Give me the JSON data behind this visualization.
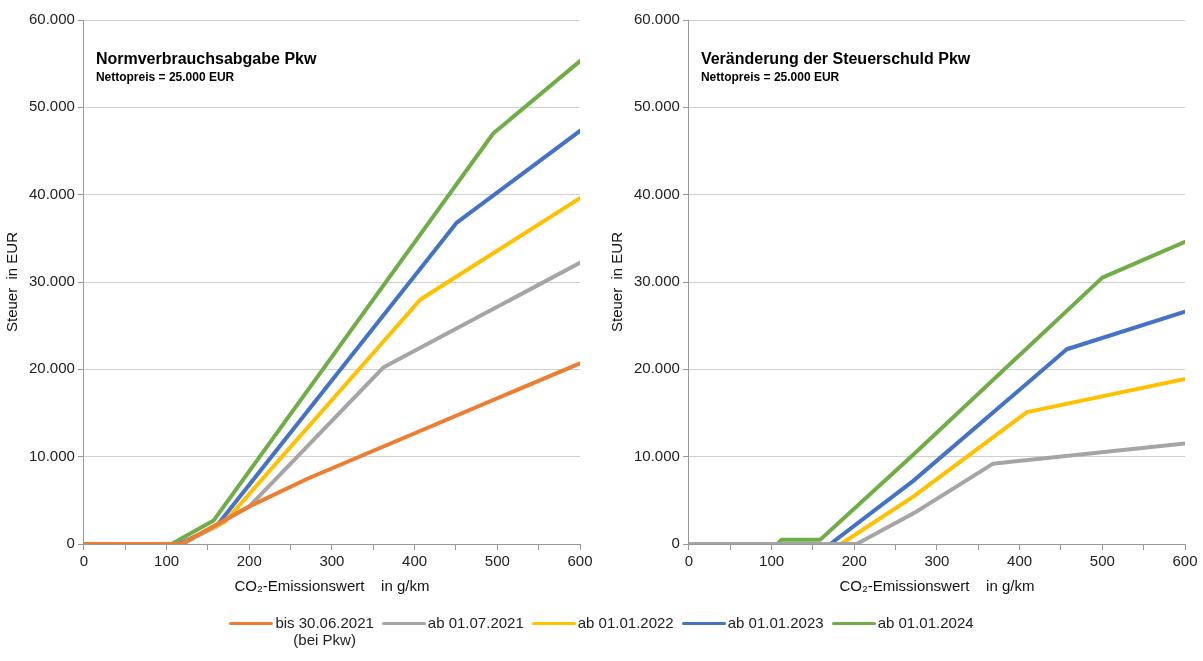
{
  "chart_data": [
    {
      "type": "line",
      "title": "Normverbrauchsabgabe Pkw",
      "subtitle": "Nettopreis = 25.000 EUR",
      "xlabel": "CO₂-Emissionswert    in g/km",
      "ylabel": "Steuer  in EUR",
      "xlim": [
        0,
        600
      ],
      "xticks": [
        0,
        {
          "value": 50,
          "label": null
        },
        100,
        {
          "value": 150,
          "label": null
        },
        200,
        {
          "value": 250,
          "label": null
        },
        300,
        {
          "value": 350,
          "label": null
        },
        400,
        {
          "value": 450,
          "label": null
        },
        500,
        {
          "value": 550,
          "label": null
        },
        600
      ],
      "ylim": [
        0,
        60000
      ],
      "yticks": [
        {
          "value": 0,
          "label": "0"
        },
        {
          "value": 10000,
          "label": "10.000"
        },
        {
          "value": 20000,
          "label": "20.000"
        },
        {
          "value": 30000,
          "label": "30.000"
        },
        {
          "value": 40000,
          "label": "40.000"
        },
        {
          "value": 50000,
          "label": "50.000"
        },
        {
          "value": 60000,
          "label": "60.000"
        }
      ],
      "grid": "y",
      "legend": "bottom",
      "marker": "none",
      "line_style": "solid",
      "series": [
        {
          "name": "bis 30.06.2021\n(bei Pkw)",
          "color": "#ed7d31",
          "x": [
            0,
            118,
            200,
            271,
            600
          ],
          "values": [
            0,
            0,
            4300,
            7500,
            20700
          ]
        },
        {
          "name": "ab 01.07.2021",
          "color": "#a5a5a5",
          "x": [
            0,
            120,
            200,
            362,
            600
          ],
          "values": [
            0,
            0,
            4300,
            20200,
            32200
          ]
        },
        {
          "name": "ab 01.01.2022",
          "color": "#ffc000",
          "x": [
            0,
            118,
            170,
            407,
            600
          ],
          "values": [
            0,
            0,
            2500,
            28000,
            39600
          ]
        },
        {
          "name": "ab 01.01.2023",
          "color": "#4472c4",
          "x": [
            0,
            115,
            160,
            451,
            600
          ],
          "values": [
            0,
            0,
            2000,
            36800,
            47300
          ]
        },
        {
          "name": "ab 01.01.2024",
          "color": "#70ad47",
          "x": [
            0,
            106,
            157,
            495,
            600
          ],
          "values": [
            0,
            0,
            2700,
            47000,
            55300
          ]
        }
      ]
    },
    {
      "type": "line",
      "title": "Veränderung der Steuerschuld Pkw",
      "subtitle": "Nettopreis = 25.000 EUR",
      "xlabel": "CO₂-Emissionswert    in g/km",
      "ylabel": "Steuer  in EUR",
      "xlim": [
        0,
        600
      ],
      "xticks": [
        0,
        {
          "value": 50,
          "label": null
        },
        100,
        {
          "value": 150,
          "label": null
        },
        200,
        {
          "value": 250,
          "label": null
        },
        300,
        {
          "value": 350,
          "label": null
        },
        400,
        {
          "value": 450,
          "label": null
        },
        500,
        {
          "value": 550,
          "label": null
        },
        600
      ],
      "ylim": [
        0,
        60000
      ],
      "yticks": [
        {
          "value": 0,
          "label": "0"
        },
        {
          "value": 10000,
          "label": "10.000"
        },
        {
          "value": 20000,
          "label": "20.000"
        },
        {
          "value": 30000,
          "label": "30.000"
        },
        {
          "value": 40000,
          "label": "40.000"
        },
        {
          "value": 50000,
          "label": "50.000"
        },
        {
          "value": 60000,
          "label": "60.000"
        }
      ],
      "grid": "y",
      "marker": "none",
      "line_style": "solid",
      "series": [
        {
          "color": "#a5a5a5",
          "x": [
            0,
            203,
            275,
            368,
            600
          ],
          "values": [
            0,
            0,
            3700,
            9200,
            11500
          ]
        },
        {
          "color": "#ffc000",
          "x": [
            0,
            184,
            271,
            409,
            600
          ],
          "values": [
            0,
            0,
            5400,
            15100,
            18900
          ]
        },
        {
          "color": "#4472c4",
          "x": [
            0,
            171,
            271,
            457,
            600
          ],
          "values": [
            0,
            0,
            7200,
            22300,
            26600
          ]
        },
        {
          "color": "#70ad47",
          "x": [
            0,
            107,
            112,
            159,
            271,
            500,
            600
          ],
          "values": [
            0,
            0,
            500,
            500,
            10200,
            30500,
            34600
          ]
        }
      ]
    }
  ]
}
